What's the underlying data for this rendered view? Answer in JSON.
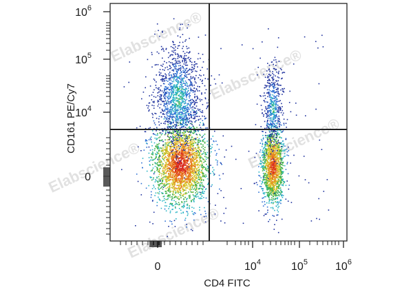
{
  "chart_data": {
    "type": "scatter",
    "style": "flow-cytometry density dot plot",
    "title": "",
    "xlabel": "CD4 FITC",
    "ylabel": "CD161 PE/Cy7",
    "x_scale": "biexponential",
    "y_scale": "biexponential",
    "x_ticks": [
      {
        "base": "0",
        "exp": ""
      },
      {
        "base": "10",
        "exp": "4"
      },
      {
        "base": "10",
        "exp": "5"
      },
      {
        "base": "10",
        "exp": "6"
      }
    ],
    "y_ticks": [
      {
        "base": "0",
        "exp": ""
      },
      {
        "base": "10",
        "exp": "4"
      },
      {
        "base": "10",
        "exp": "5"
      },
      {
        "base": "10",
        "exp": "6"
      }
    ],
    "quadrant_gate": {
      "x": 2000,
      "y": 2000
    },
    "populations": [
      {
        "label": "CD4- CD161-",
        "x_center": 100,
        "y_center": 0,
        "density": "high"
      },
      {
        "label": "CD4- CD161+",
        "x_center": 100,
        "y_center": 10000,
        "density": "medium"
      },
      {
        "label": "CD4+ CD161-",
        "x_center": 30000,
        "y_center": 0,
        "density": "high"
      },
      {
        "label": "CD4+ CD161+",
        "x_center": 30000,
        "y_center": 8000,
        "density": "low"
      }
    ],
    "density_colors": [
      "#1c2f9c",
      "#2b6fd4",
      "#27b3c4",
      "#3fb14a",
      "#d8c42a",
      "#e8781c",
      "#d8261c"
    ],
    "grid": false,
    "legend": "none"
  },
  "watermark_text": "Elabscience",
  "watermark_mark": "®"
}
